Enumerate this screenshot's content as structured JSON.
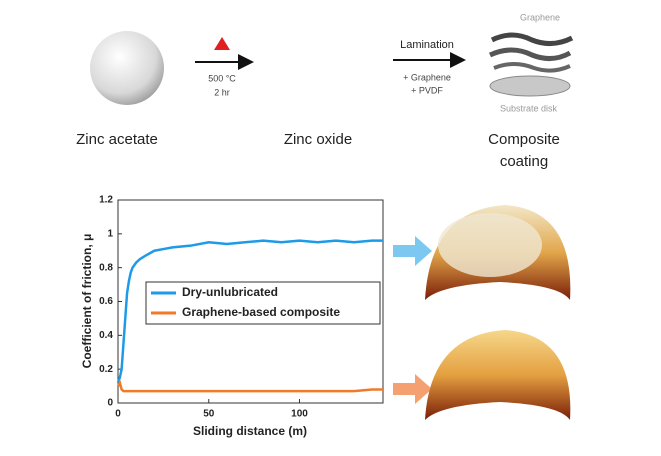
{
  "diagram": {
    "steps": [
      "Zinc acetate",
      "Zinc oxide",
      "Composite",
      "coating"
    ],
    "step1_conditions": [
      "500 °C",
      "2 hr"
    ],
    "step2_conditions": [
      "Lamination",
      "+ Graphene",
      "+ PVDF"
    ],
    "coating_labels": [
      "Graphene",
      "Substrate disk"
    ]
  },
  "chart_data": {
    "type": "line",
    "xlabel": "Sliding distance (m)",
    "ylabel": "Coefficient of friction, μ",
    "x": [
      0,
      1,
      2,
      3,
      4,
      5,
      6,
      7,
      8,
      10,
      12,
      15,
      20,
      25,
      30,
      40,
      50,
      60,
      70,
      80,
      90,
      100,
      110,
      120,
      130,
      140,
      146
    ],
    "series": [
      {
        "name": "Dry-unlubricated",
        "color": "#1e9be8",
        "values": [
          0.12,
          0.15,
          0.2,
          0.35,
          0.5,
          0.65,
          0.72,
          0.77,
          0.8,
          0.83,
          0.85,
          0.87,
          0.9,
          0.91,
          0.92,
          0.93,
          0.95,
          0.94,
          0.95,
          0.96,
          0.95,
          0.96,
          0.95,
          0.96,
          0.95,
          0.96,
          0.96
        ]
      },
      {
        "name": "Graphene-based composite",
        "color": "#f07a2a",
        "values": [
          0.1,
          0.12,
          0.08,
          0.07,
          0.07,
          0.07,
          0.07,
          0.07,
          0.07,
          0.07,
          0.07,
          0.07,
          0.07,
          0.07,
          0.07,
          0.07,
          0.07,
          0.07,
          0.07,
          0.07,
          0.07,
          0.07,
          0.07,
          0.07,
          0.07,
          0.08,
          0.08
        ]
      }
    ],
    "xlim": [
      0,
      146
    ],
    "ylim": [
      0,
      1.2
    ],
    "xticks": [
      0,
      50,
      100
    ],
    "yticks": [
      0,
      0.2,
      0.4,
      0.6,
      0.8,
      1,
      1.2
    ],
    "legend": "center right"
  }
}
